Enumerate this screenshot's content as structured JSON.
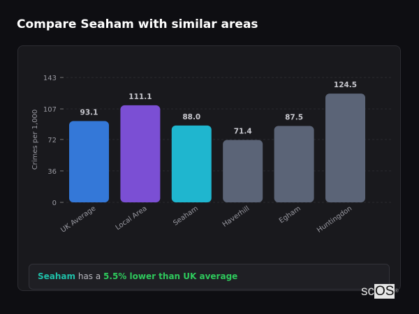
{
  "title": "Compare Seaham with similar areas",
  "chart_data": {
    "type": "bar",
    "ylabel": "Crimes per 1,000",
    "xlabel": "",
    "ylim": [
      0,
      143
    ],
    "yticks": [
      "0",
      "36",
      "72",
      "107",
      "143"
    ],
    "ytick_values": [
      0,
      36,
      72,
      107,
      143
    ],
    "grid": true,
    "categories": [
      "UK Average",
      "Local Area",
      "Seaham",
      "Haverhill",
      "Egham",
      "Huntingdon"
    ],
    "values": [
      93.1,
      111.1,
      88.0,
      71.4,
      87.5,
      124.5
    ],
    "value_labels": [
      "93.1",
      "111.1",
      "88.0",
      "71.4",
      "87.5",
      "124.5"
    ],
    "colors": [
      "#3478d8",
      "#7b4fd4",
      "#1fb6cf",
      "#5b6477",
      "#5b6477",
      "#5b6477"
    ]
  },
  "summary": {
    "name": "Seaham",
    "middle": " has a ",
    "value": "5.5% lower than UK average"
  },
  "watermark": {
    "text": "scOS"
  }
}
